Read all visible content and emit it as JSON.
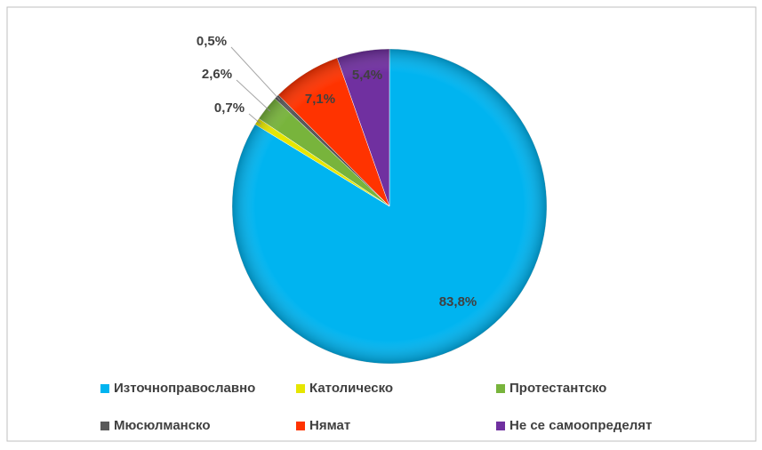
{
  "chart_data": {
    "type": "pie",
    "categories": [
      "Източноправославно",
      "Католическо",
      "Протестантско",
      "Мюсюлманско",
      "Нямат",
      "Не се самоопределят"
    ],
    "values": [
      83.8,
      0.7,
      2.6,
      0.5,
      7.1,
      5.4
    ],
    "value_labels": [
      "83,8%",
      "0,7%",
      "2,6%",
      "0,5%",
      "7,1%",
      "5,4%"
    ],
    "colors": [
      "#00b4f0",
      "#e6e600",
      "#78b43c",
      "#5a5a5a",
      "#ff3300",
      "#7030a0"
    ],
    "legend": "bottom"
  }
}
